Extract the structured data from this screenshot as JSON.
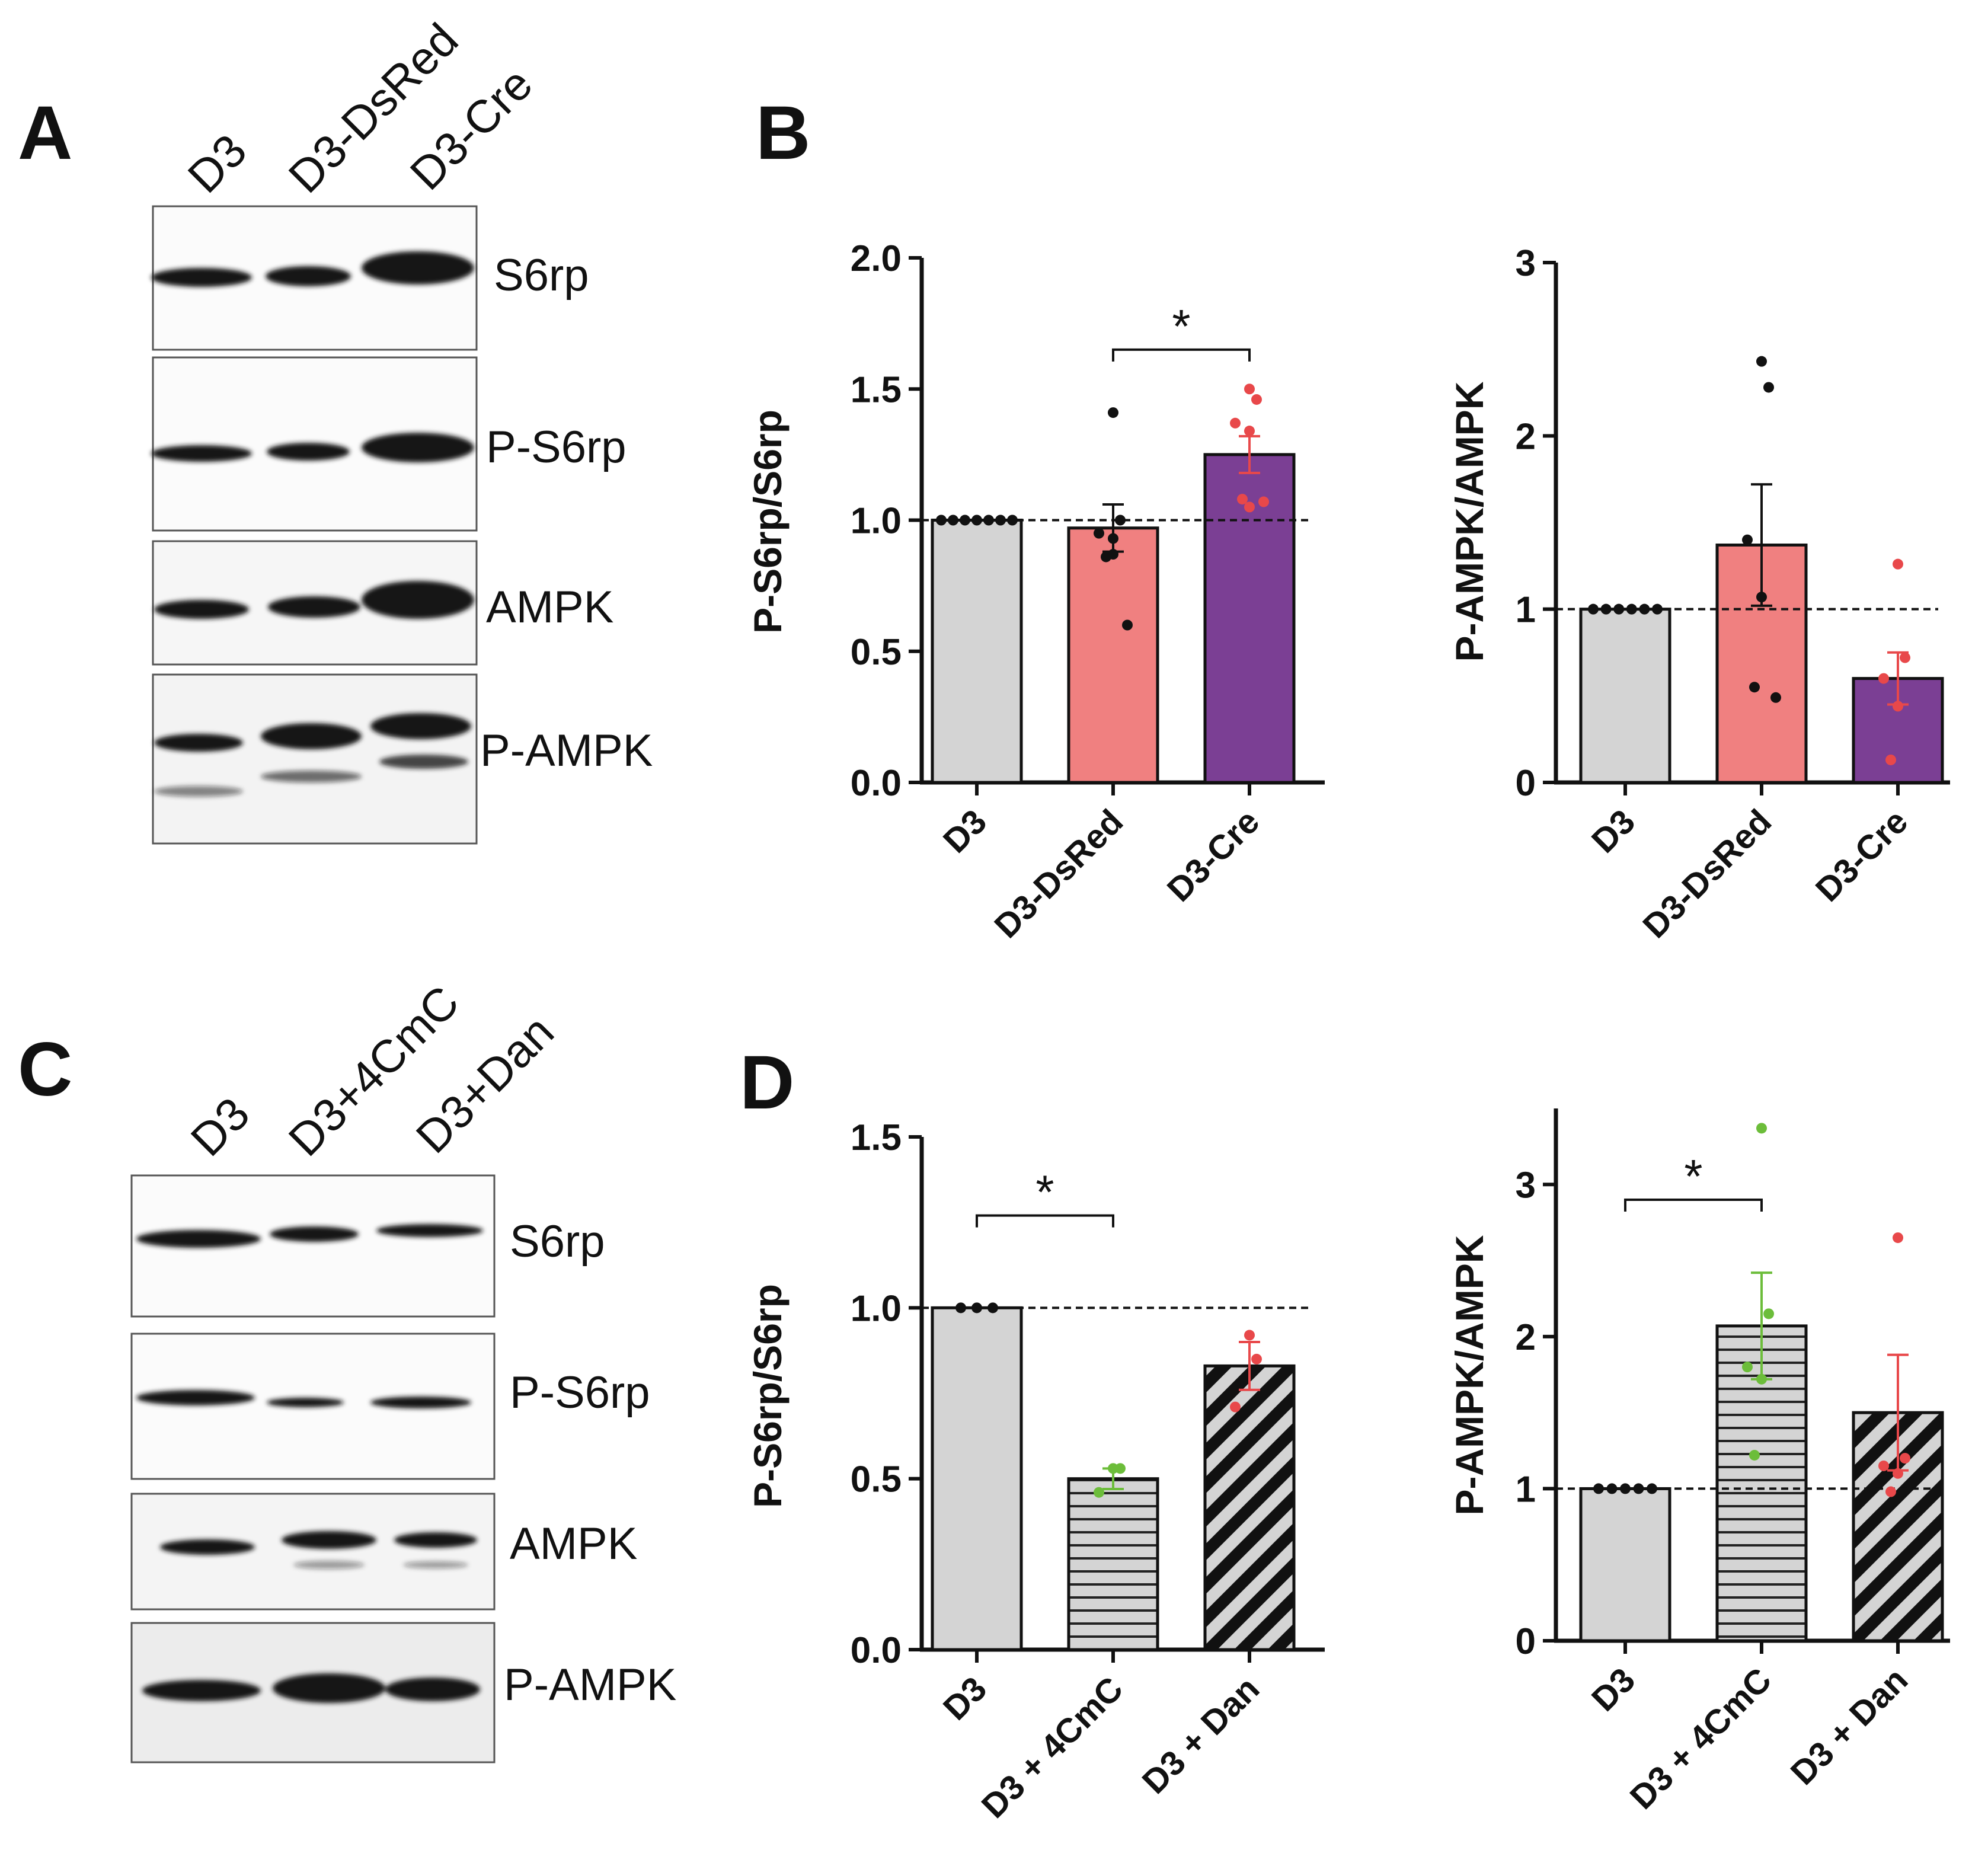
{
  "panels": {
    "A": {
      "letter": "A",
      "lanes": [
        "D3",
        "D3-DsRed",
        "D3-Cre"
      ],
      "bands": [
        "S6rp",
        "P-S6rp",
        "AMPK",
        "P-AMPK"
      ]
    },
    "C": {
      "letter": "C",
      "lanes": [
        "D3",
        "D3+4CmC",
        "D3+Dan"
      ],
      "bands": [
        "S6rp",
        "P-S6rp",
        "AMPK",
        "P-AMPK"
      ]
    },
    "B": {
      "letter": "B"
    },
    "D": {
      "letter": "D"
    }
  },
  "colors": {
    "grey_bar": "#d4d4d4",
    "salmon_bar": "#f08080",
    "purple_bar": "#7b3f94",
    "black_dots": "#111111",
    "red_dots": "#e8484a",
    "green_dots": "#6cbd3a"
  },
  "chart_data": [
    {
      "id": "B-left",
      "type": "bar",
      "ylabel": "P-S6rp/S6rp",
      "ylim": [
        0,
        2.0
      ],
      "yticks": [
        "0.0",
        "0.5",
        "1.0",
        "1.5",
        "2.0"
      ],
      "reference_line": 1.0,
      "categories": [
        "D3",
        "D3-DsRed",
        "D3-Cre"
      ],
      "values": [
        1.0,
        0.97,
        1.25
      ],
      "errors": [
        0,
        0.09,
        0.07
      ],
      "fills": [
        "grey",
        "salmon",
        "purple"
      ],
      "point_colors": [
        "black",
        "black",
        "red"
      ],
      "points": [
        [
          1,
          1,
          1,
          1,
          1,
          1,
          1
        ],
        [
          1.41,
          1.0,
          0.95,
          0.87,
          0.86,
          0.6,
          0.93
        ],
        [
          1.5,
          1.46,
          1.37,
          1.34,
          1.08,
          1.07,
          1.05
        ]
      ],
      "significance": [
        {
          "from": 1,
          "to": 2,
          "y": 1.65,
          "label": "*"
        }
      ]
    },
    {
      "id": "B-right",
      "type": "bar",
      "ylabel": "P-AMPK/AMPK",
      "ylim": [
        0,
        3
      ],
      "yticks": [
        "0",
        "1",
        "2",
        "3"
      ],
      "reference_line": 1,
      "categories": [
        "D3",
        "D3-DsRed",
        "D3-Cre"
      ],
      "values": [
        1.0,
        1.37,
        0.6
      ],
      "errors": [
        0,
        0.35,
        0.15
      ],
      "fills": [
        "grey",
        "salmon",
        "purple"
      ],
      "point_colors": [
        "black",
        "black",
        "red"
      ],
      "points": [
        [
          1,
          1,
          1,
          1,
          1,
          1
        ],
        [
          2.43,
          2.28,
          1.4,
          1.07,
          0.55,
          0.49
        ],
        [
          1.26,
          0.72,
          0.6,
          0.44,
          0.13
        ]
      ],
      "significance": []
    },
    {
      "id": "D-left",
      "type": "bar",
      "ylabel": "P-S6rp/S6rp",
      "ylim": [
        0,
        1.5
      ],
      "yticks": [
        "0.0",
        "0.5",
        "1.0",
        "1.5"
      ],
      "reference_line": 1.0,
      "categories": [
        "D3",
        "D3 + 4CmC",
        "D3 + Dan"
      ],
      "values": [
        1.0,
        0.5,
        0.83
      ],
      "errors": [
        0,
        0.03,
        0.07
      ],
      "fills": [
        "grey",
        "hlines",
        "diag"
      ],
      "point_colors": [
        "black",
        "green",
        "red"
      ],
      "points": [
        [
          1,
          1,
          1
        ],
        [
          0.53,
          0.53,
          0.46
        ],
        [
          0.92,
          0.85,
          0.71
        ]
      ],
      "significance": [
        {
          "from": 0,
          "to": 1,
          "y": 1.27,
          "label": "*"
        }
      ]
    },
    {
      "id": "D-right",
      "type": "bar",
      "ylabel": "P-AMPK/AMPK",
      "ylim": [
        0,
        3.5
      ],
      "yticks": [
        "0",
        "1",
        "2",
        "3"
      ],
      "reference_line": 1,
      "categories": [
        "D3",
        "D3 + 4CmC",
        "D3 + Dan"
      ],
      "values": [
        1.0,
        2.07,
        1.5
      ],
      "errors": [
        0,
        0.35,
        0.38
      ],
      "fills": [
        "grey",
        "hlines",
        "diag"
      ],
      "point_colors": [
        "black",
        "green",
        "red"
      ],
      "points": [
        [
          1,
          1,
          1,
          1,
          1
        ],
        [
          3.37,
          2.15,
          1.8,
          1.72,
          1.22
        ],
        [
          2.65,
          1.2,
          1.15,
          1.1,
          0.98
        ]
      ],
      "significance": [
        {
          "from": 0,
          "to": 1,
          "y": 2.9,
          "label": "*"
        }
      ]
    }
  ]
}
